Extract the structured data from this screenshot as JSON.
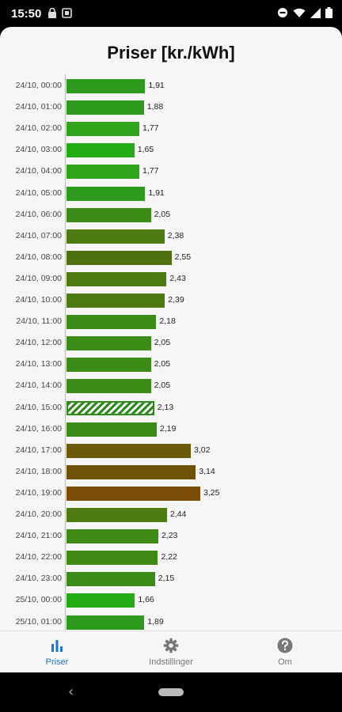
{
  "status_bar": {
    "time": "15:50"
  },
  "page": {
    "title": "Priser [kr./kWh]"
  },
  "chart_data": {
    "type": "bar",
    "orientation": "horizontal",
    "title": "Priser [kr./kWh]",
    "xlim": [
      0,
      4
    ],
    "highlight_category": "24/10, 15:00",
    "categories": [
      "24/10, 00:00",
      "24/10, 01:00",
      "24/10, 02:00",
      "24/10, 03:00",
      "24/10, 04:00",
      "24/10, 05:00",
      "24/10, 06:00",
      "24/10, 07:00",
      "24/10, 08:00",
      "24/10, 09:00",
      "24/10, 10:00",
      "24/10, 11:00",
      "24/10, 12:00",
      "24/10, 13:00",
      "24/10, 14:00",
      "24/10, 15:00",
      "24/10, 16:00",
      "24/10, 17:00",
      "24/10, 18:00",
      "24/10, 19:00",
      "24/10, 20:00",
      "24/10, 21:00",
      "24/10, 22:00",
      "24/10, 23:00",
      "25/10, 00:00",
      "25/10, 01:00"
    ],
    "values": [
      1.91,
      1.88,
      1.77,
      1.65,
      1.77,
      1.91,
      2.05,
      2.38,
      2.55,
      2.43,
      2.39,
      2.18,
      2.05,
      2.05,
      2.05,
      2.13,
      2.19,
      3.02,
      3.14,
      3.25,
      2.44,
      2.23,
      2.22,
      2.15,
      1.66,
      1.89
    ],
    "value_labels": [
      "1,91",
      "1,88",
      "1,77",
      "1,65",
      "1,77",
      "1,91",
      "2,05",
      "2,38",
      "2,55",
      "2,43",
      "2,39",
      "2,18",
      "2,05",
      "2,05",
      "2,05",
      "2,13",
      "2,19",
      "3,02",
      "3,14",
      "3,25",
      "2,44",
      "2,23",
      "2,22",
      "2,15",
      "1,66",
      "1,89"
    ],
    "colors": [
      "#2e9a1d",
      "#2e9a1d",
      "#2fa31a",
      "#22ab13",
      "#2fa31a",
      "#2e9a1d",
      "#3a8c16",
      "#4d7b11",
      "#4e7010",
      "#4d7b11",
      "#4d7b11",
      "#3a8c16",
      "#3a8c16",
      "#3a8c16",
      "#3a8c16",
      "#2e8a1c",
      "#3a8c16",
      "#6a5a0a",
      "#6e5208",
      "#7a4e06",
      "#4d7b11",
      "#3f8a14",
      "#3f8a14",
      "#3a8c16",
      "#22ab13",
      "#2e9a1d"
    ]
  },
  "bottom_nav": {
    "items": [
      {
        "label": "Priser",
        "icon": "bar-chart-icon",
        "active": true
      },
      {
        "label": "Indstillinger",
        "icon": "gear-icon",
        "active": false
      },
      {
        "label": "Om",
        "icon": "help-icon",
        "active": false
      }
    ]
  }
}
